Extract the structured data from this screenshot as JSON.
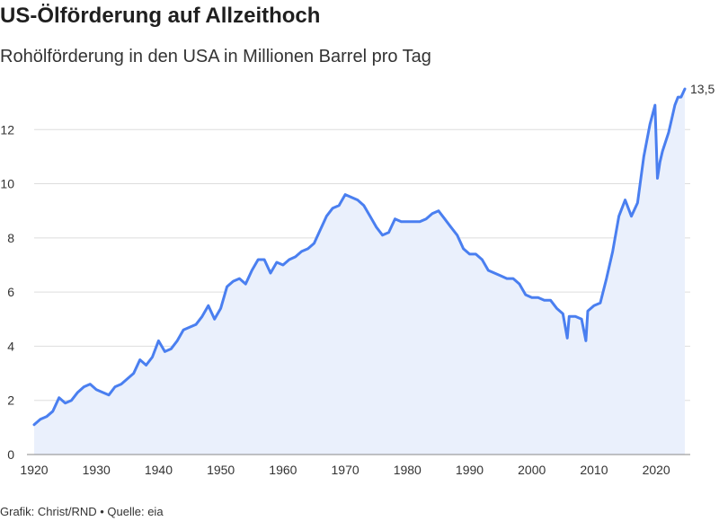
{
  "chart_data": {
    "type": "area",
    "title": "US-Ölförderung auf Allzeithoch",
    "subtitle": "Rohölförderung in den USA in Millionen Barrel pro Tag",
    "xlabel": "",
    "ylabel": "",
    "xlim": [
      1920,
      2024.6
    ],
    "ylim": [
      0,
      13.8
    ],
    "x_ticks": [
      1920,
      1930,
      1940,
      1950,
      1960,
      1970,
      1980,
      1990,
      2000,
      2010,
      2020
    ],
    "y_ticks": [
      0,
      2,
      4,
      6,
      8,
      10,
      12
    ],
    "grid": true,
    "end_label": "13,5",
    "colors": {
      "line": "#4a7ff0",
      "area": "#eaf0fc",
      "grid": "#dddddd"
    },
    "series": [
      {
        "x": [
          1920,
          1921,
          1922,
          1923,
          1924,
          1925,
          1926,
          1927,
          1928,
          1929,
          1930,
          1931,
          1932,
          1933,
          1934,
          1935,
          1936,
          1937,
          1938,
          1939,
          1940,
          1941,
          1942,
          1943,
          1944,
          1945,
          1946,
          1947,
          1948,
          1949,
          1950,
          1951,
          1952,
          1953,
          1954,
          1955,
          1956,
          1957,
          1958,
          1959,
          1960,
          1961,
          1962,
          1963,
          1964,
          1965,
          1966,
          1967,
          1968,
          1969,
          1970,
          1971,
          1972,
          1973,
          1974,
          1975,
          1976,
          1977,
          1978,
          1979,
          1980,
          1981,
          1982,
          1983,
          1984,
          1985,
          1986,
          1987,
          1988,
          1989,
          1990,
          1991,
          1992,
          1993,
          1994,
          1995,
          1996,
          1997,
          1998,
          1999,
          2000,
          2001,
          2002,
          2003,
          2004,
          2005,
          2005.7,
          2006,
          2007,
          2008,
          2008.7,
          2009,
          2010,
          2011,
          2012,
          2013,
          2014,
          2015,
          2016,
          2017,
          2018,
          2019,
          2019.8,
          2020.2,
          2020.6,
          2021,
          2022,
          2023,
          2023.5,
          2024,
          2024.6
        ],
        "values": [
          1.1,
          1.3,
          1.4,
          1.6,
          2.1,
          1.9,
          2.0,
          2.3,
          2.5,
          2.6,
          2.4,
          2.3,
          2.2,
          2.5,
          2.6,
          2.8,
          3.0,
          3.5,
          3.3,
          3.6,
          4.2,
          3.8,
          3.9,
          4.2,
          4.6,
          4.7,
          4.8,
          5.1,
          5.5,
          5.0,
          5.4,
          6.2,
          6.4,
          6.5,
          6.3,
          6.8,
          7.2,
          7.2,
          6.7,
          7.1,
          7.0,
          7.2,
          7.3,
          7.5,
          7.6,
          7.8,
          8.3,
          8.8,
          9.1,
          9.2,
          9.6,
          9.5,
          9.4,
          9.2,
          8.8,
          8.4,
          8.1,
          8.2,
          8.7,
          8.6,
          8.6,
          8.6,
          8.6,
          8.7,
          8.9,
          9.0,
          8.7,
          8.4,
          8.1,
          7.6,
          7.4,
          7.4,
          7.2,
          6.8,
          6.7,
          6.6,
          6.5,
          6.5,
          6.3,
          5.9,
          5.8,
          5.8,
          5.7,
          5.7,
          5.4,
          5.2,
          4.3,
          5.1,
          5.1,
          5.0,
          4.2,
          5.3,
          5.5,
          5.6,
          6.5,
          7.5,
          8.8,
          9.4,
          8.8,
          9.3,
          11.0,
          12.2,
          12.9,
          10.2,
          10.8,
          11.2,
          11.9,
          12.9,
          13.2,
          13.2,
          13.5
        ]
      }
    ]
  },
  "footer": "Grafik: Christ/RND • Quelle: eia"
}
